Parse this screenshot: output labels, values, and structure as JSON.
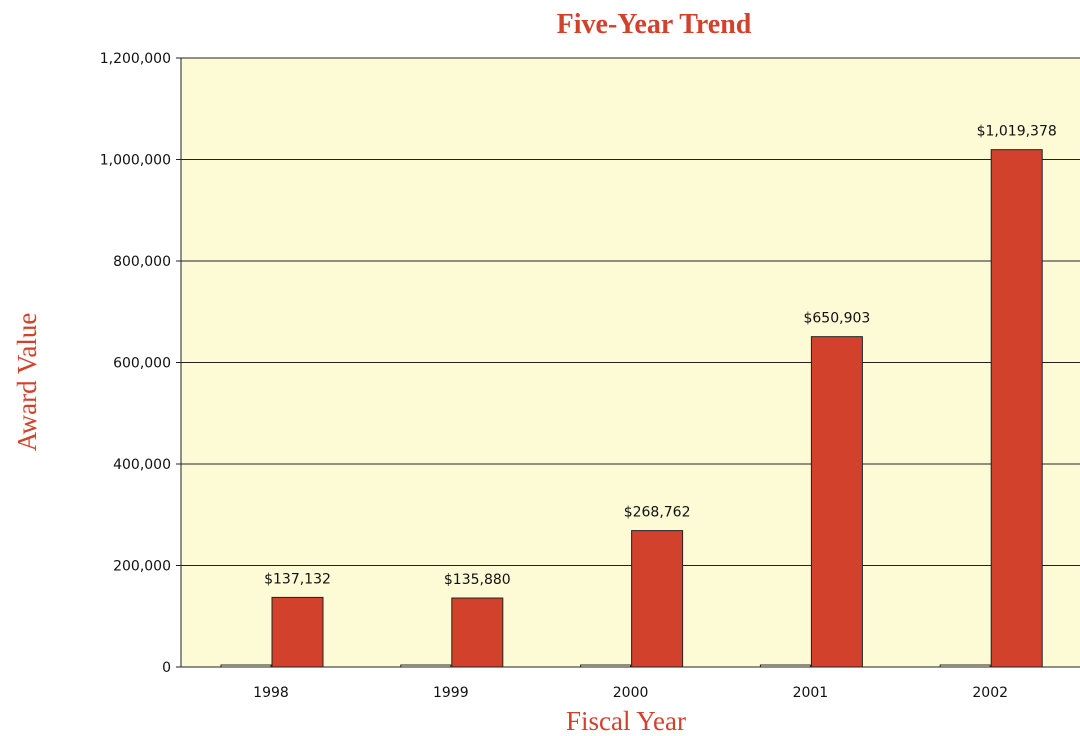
{
  "chart_data": {
    "type": "bar",
    "title": "Five-Year Trend",
    "xlabel": "Fiscal Year",
    "ylabel": "Award Value",
    "categories": [
      "1998",
      "1999",
      "2000",
      "2001",
      "2002"
    ],
    "series": [
      {
        "values": [
          137132,
          135880,
          268762,
          650903,
          1019378
        ],
        "labels": [
          "$137,132",
          "$135,880",
          "$268,762",
          "$650,903",
          "$1,019,378"
        ],
        "color": "#d1412c"
      }
    ],
    "ylim": [
      0,
      1200000
    ],
    "yticks": [
      0,
      200000,
      400000,
      600000,
      800000,
      1000000,
      1200000
    ],
    "ytick_labels": [
      "0",
      "200,000",
      "400,000",
      "600,000",
      "800,000",
      "1,000,000",
      "1,200,000"
    ],
    "grid": true,
    "legend": "none",
    "plot_background": "#fdfad6"
  }
}
